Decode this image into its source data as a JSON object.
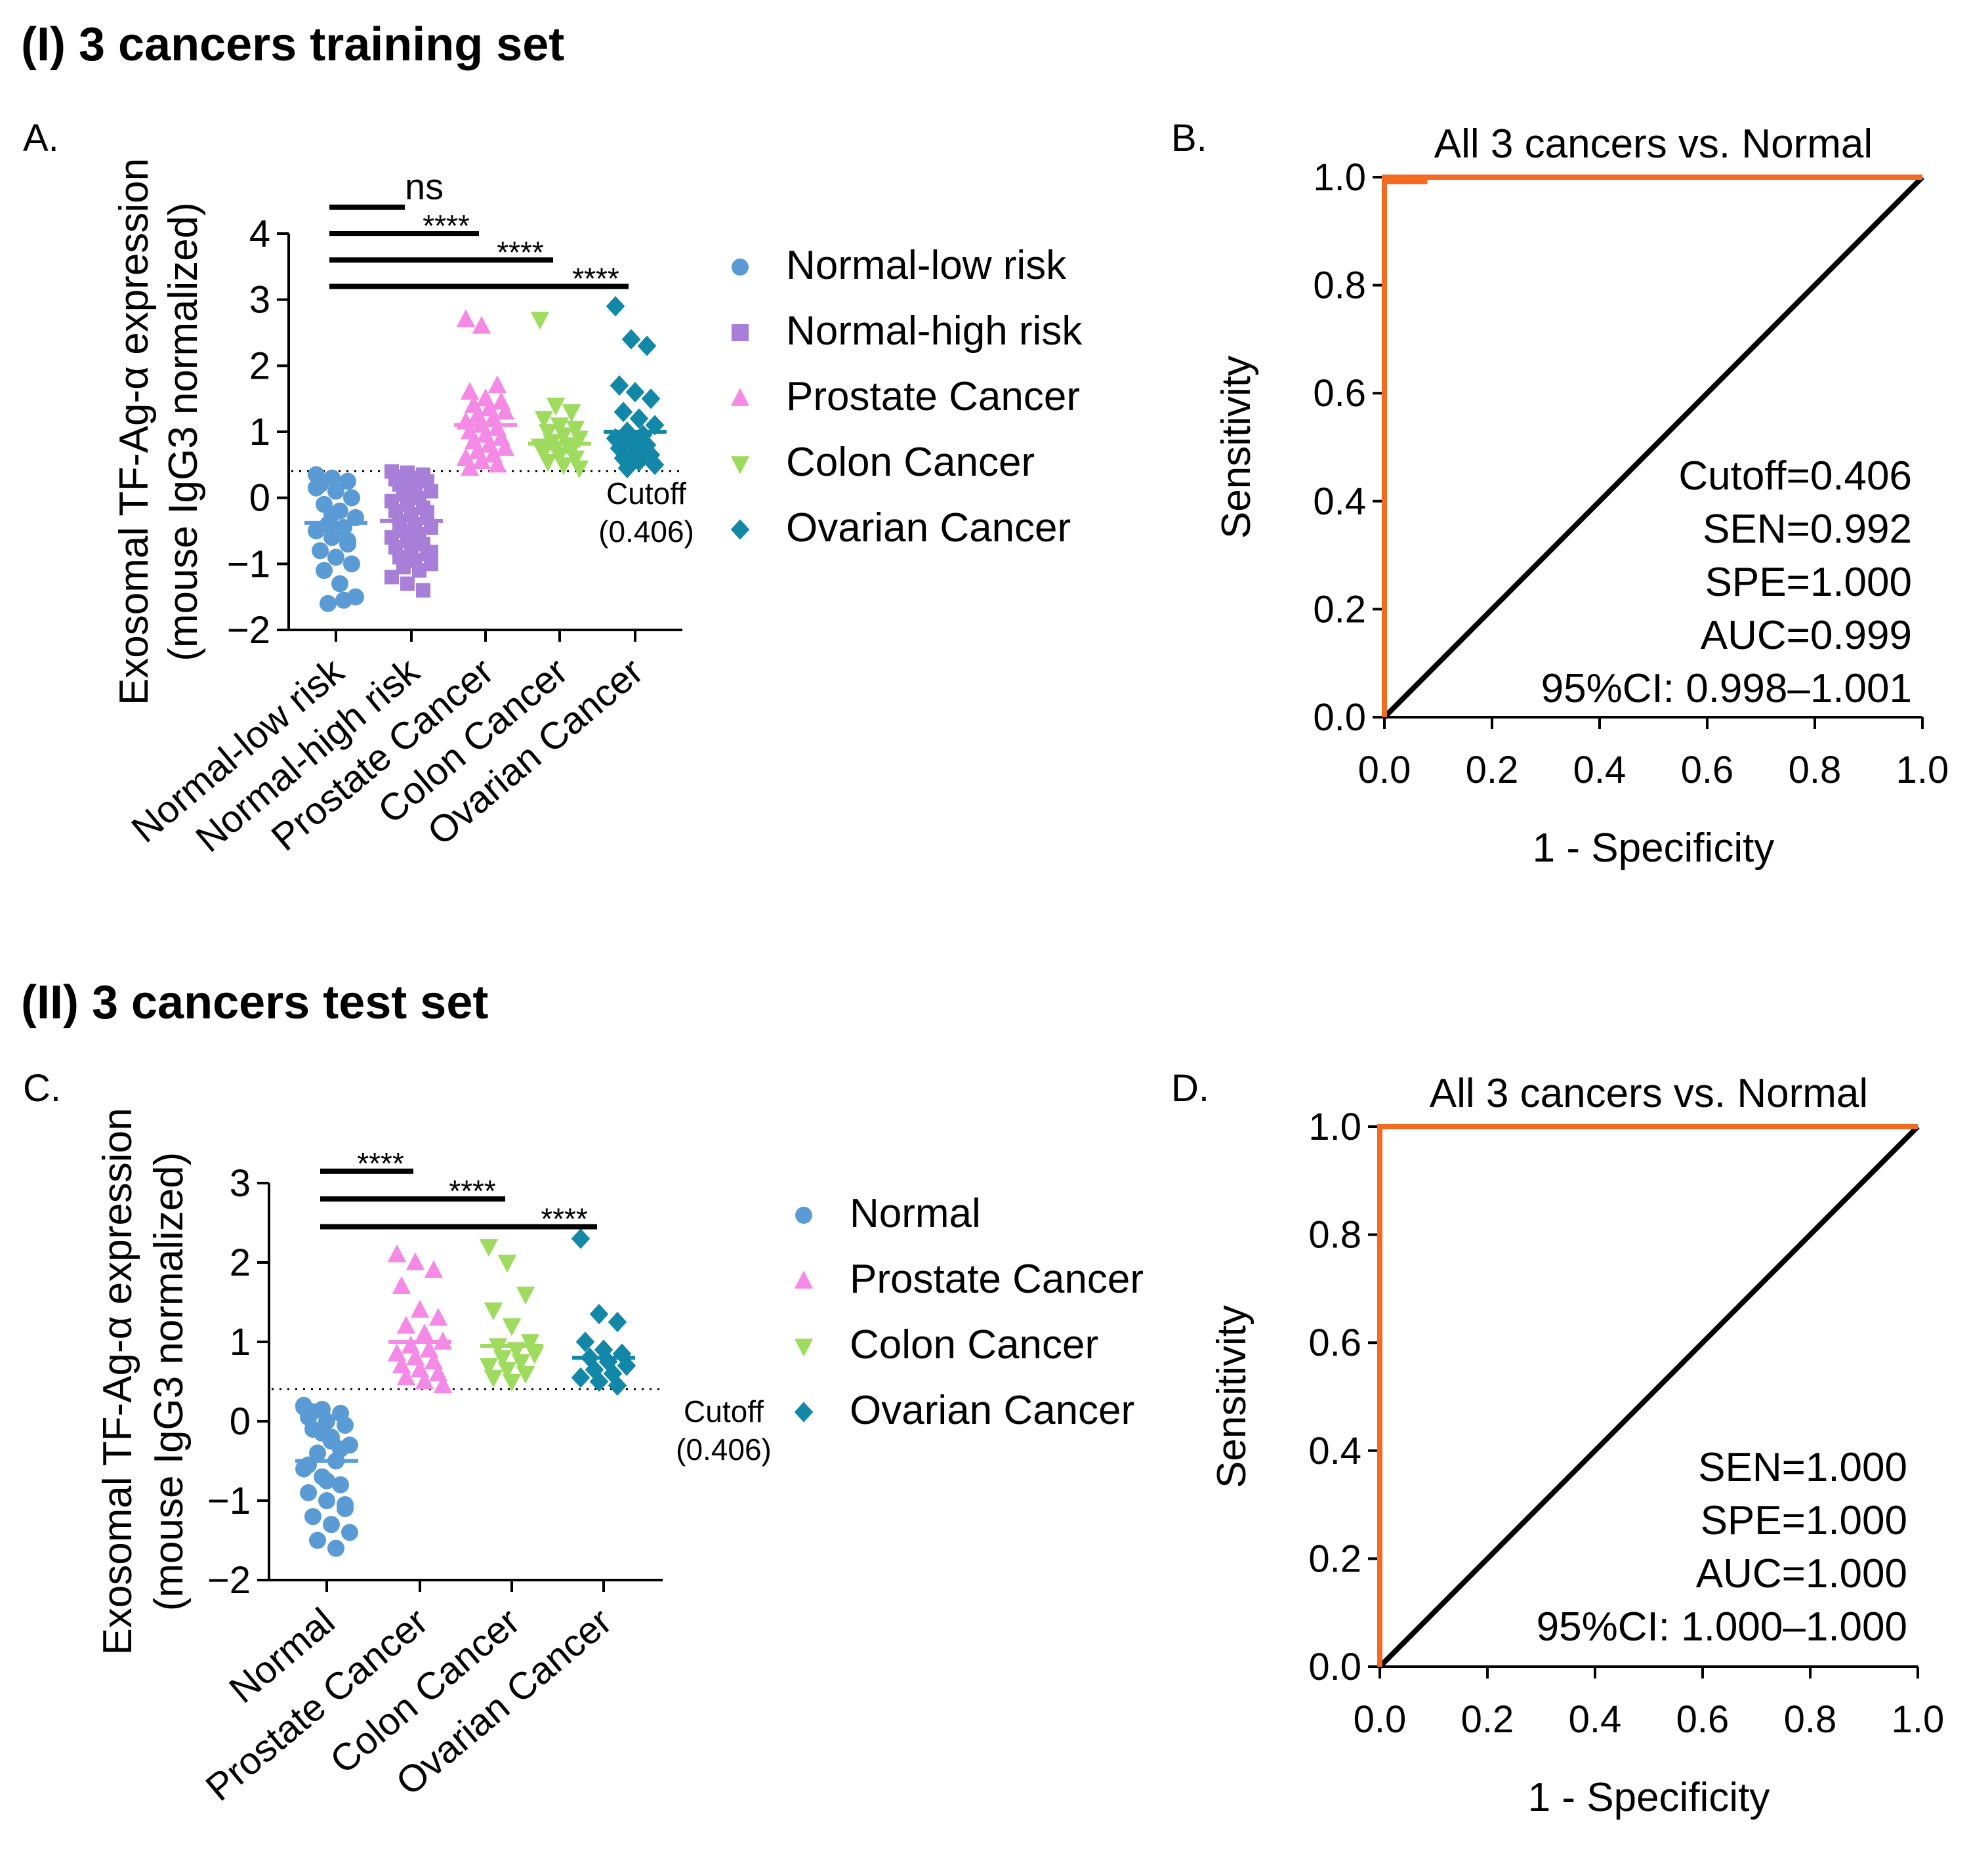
{
  "figure": {
    "section1_title": "(I) 3 cancers training set",
    "section2_title": "(II) 3 cancers test set"
  },
  "colors": {
    "Normal-low risk": "#5b9bd5",
    "Normal-high risk": "#a77ed8",
    "Prostate Cancer": "#f58ae6",
    "Colon Cancer": "#9edb5e",
    "Ovarian Cancer": "#1287a8",
    "Normal": "#5b9bd5",
    "roc": "#f26b21",
    "diag": "#000000"
  },
  "chart_data": [
    {
      "panel": "A.",
      "type": "scatter",
      "ylabel_line1": "Exosomal TF-Ag-α expression",
      "ylabel_line2": "(mouse IgG3 normalized)",
      "ylim": [
        -2,
        4
      ],
      "yticks": [
        -2,
        -1,
        0,
        1,
        2,
        3,
        4
      ],
      "ytick_labels": [
        "−2",
        "−1",
        "0",
        "1",
        "2",
        "3",
        "4"
      ],
      "categories": [
        "Normal-low risk",
        "Normal-high risk",
        "Prostate Cancer",
        "Colon Cancer",
        "Ovarian Cancer"
      ],
      "markers": [
        "circle",
        "square",
        "triangle-up",
        "triangle-down",
        "diamond"
      ],
      "medians": [
        -0.38,
        -0.35,
        1.1,
        0.82,
        1.0
      ],
      "cutoff": 0.406,
      "cutoff_label_line1": "Cutoff",
      "cutoff_label_line2": "(0.406)",
      "comparisons": [
        {
          "label": "ns",
          "y": 4.4,
          "to": 1
        },
        {
          "label": "****",
          "y": 4.0,
          "to": 2
        },
        {
          "label": "****",
          "y": 3.6,
          "to": 3
        },
        {
          "label": "****",
          "y": 3.2,
          "to": 4
        }
      ],
      "points": [
        [
          0.35,
          0.3,
          0.25,
          0.2,
          0.1,
          0.0,
          -0.1,
          -0.2,
          -0.3,
          -0.4,
          -0.45,
          -0.5,
          -0.6,
          -0.7,
          -0.8,
          -0.9,
          -1.0,
          -1.1,
          -1.3,
          -1.5,
          -1.6,
          -1.55,
          0.15,
          -0.25,
          -0.65
        ],
        [
          0.4,
          0.38,
          0.35,
          0.32,
          0.3,
          0.25,
          0.2,
          0.15,
          0.1,
          0.05,
          0.0,
          -0.05,
          -0.1,
          -0.15,
          -0.2,
          -0.25,
          -0.3,
          -0.35,
          -0.4,
          -0.45,
          -0.5,
          -0.55,
          -0.6,
          -0.65,
          -0.7,
          -0.75,
          -0.8,
          -0.85,
          -0.9,
          -0.95,
          -1.0,
          -1.05,
          -1.1,
          -1.2,
          -1.3,
          -1.4,
          0.28,
          0.12,
          -0.22,
          -0.42,
          -0.62,
          -0.82,
          -1.02
        ],
        [
          2.7,
          2.6,
          1.7,
          1.6,
          1.5,
          1.45,
          1.4,
          1.35,
          1.3,
          1.25,
          1.2,
          1.15,
          1.1,
          1.05,
          1.0,
          0.95,
          0.9,
          0.85,
          0.8,
          0.75,
          0.7,
          0.65,
          0.6,
          0.55,
          0.5,
          0.45
        ],
        [
          2.7,
          1.4,
          1.3,
          1.2,
          1.1,
          1.05,
          1.0,
          0.95,
          0.9,
          0.85,
          0.8,
          0.78,
          0.75,
          0.72,
          0.7,
          0.65,
          0.6,
          0.55,
          0.5,
          0.45
        ],
        [
          2.9,
          2.4,
          2.3,
          1.7,
          1.6,
          1.5,
          1.3,
          1.2,
          1.1,
          1.0,
          0.95,
          0.9,
          0.85,
          0.8,
          0.75,
          0.7,
          0.65,
          0.6,
          0.55,
          0.5,
          0.45
        ]
      ]
    },
    {
      "panel": "B.",
      "type": "line",
      "title": "All 3 cancers vs. Normal",
      "xlabel": "1 - Specificity",
      "ylabel": "Sensitivity",
      "xlim": [
        0,
        1
      ],
      "ylim": [
        0,
        1
      ],
      "ticks": [
        0.0,
        0.2,
        0.4,
        0.6,
        0.8,
        1.0
      ],
      "tick_labels": [
        "0.0",
        "0.2",
        "0.4",
        "0.6",
        "0.8",
        "1.0"
      ],
      "roc_x": [
        0,
        0,
        0,
        0.08,
        1
      ],
      "roc_y": [
        0,
        0.992,
        1.0,
        1.0,
        1.0
      ],
      "roc_step": [
        0,
        0.992,
        0.08
      ],
      "stats": [
        "Cutoff=0.406",
        "SEN=0.992",
        "SPE=1.000",
        "AUC=0.999",
        "95%CI: 0.998–1.001"
      ]
    },
    {
      "panel": "C.",
      "type": "scatter",
      "ylabel_line1": "Exosomal TF-Ag-α expression",
      "ylabel_line2": "(mouse IgG3 normalized)",
      "ylim": [
        -2,
        3
      ],
      "yticks": [
        -2,
        -1,
        0,
        1,
        2,
        3
      ],
      "ytick_labels": [
        "−2",
        "−1",
        "0",
        "1",
        "2",
        "3"
      ],
      "categories": [
        "Normal",
        "Prostate Cancer",
        "Colon Cancer",
        "Ovarian Cancer"
      ],
      "markers": [
        "circle",
        "triangle-up",
        "triangle-down",
        "diamond"
      ],
      "medians": [
        -0.5,
        1.0,
        0.95,
        0.8
      ],
      "cutoff": 0.406,
      "cutoff_label_line1": "Cutoff",
      "cutoff_label_line2": "(0.406)",
      "comparisons": [
        {
          "label": "****",
          "y": 3.15,
          "to": 1
        },
        {
          "label": "****",
          "y": 2.8,
          "to": 2
        },
        {
          "label": "****",
          "y": 2.45,
          "to": 3
        }
      ],
      "points": [
        [
          0.2,
          0.15,
          0.1,
          0.05,
          0.0,
          -0.05,
          -0.1,
          -0.2,
          -0.3,
          -0.4,
          -0.5,
          -0.6,
          -0.7,
          -0.8,
          -0.9,
          -1.0,
          -1.1,
          -1.2,
          -1.3,
          -1.4,
          -1.5,
          -1.6,
          0.18,
          -0.15,
          -0.35,
          -0.55,
          -0.75,
          -1.05,
          0.12,
          -0.25
        ],
        [
          2.1,
          2.0,
          1.9,
          1.7,
          1.4,
          1.3,
          1.2,
          1.1,
          1.0,
          0.95,
          0.9,
          0.85,
          0.8,
          0.75,
          0.7,
          0.65,
          0.6,
          0.55,
          0.5,
          0.45
        ],
        [
          2.2,
          2.0,
          1.6,
          1.4,
          1.2,
          1.0,
          0.95,
          0.9,
          0.85,
          0.8,
          0.75,
          0.7,
          0.65,
          0.6,
          0.55,
          0.5
        ],
        [
          2.3,
          1.35,
          1.25,
          1.0,
          0.9,
          0.85,
          0.8,
          0.75,
          0.7,
          0.65,
          0.6,
          0.55,
          0.5,
          0.45
        ]
      ]
    },
    {
      "panel": "D.",
      "type": "line",
      "title": "All 3 cancers vs. Normal",
      "xlabel": "1 - Specificity",
      "ylabel": "Sensitivity",
      "xlim": [
        0,
        1
      ],
      "ylim": [
        0,
        1
      ],
      "ticks": [
        0.0,
        0.2,
        0.4,
        0.6,
        0.8,
        1.0
      ],
      "tick_labels": [
        "0.0",
        "0.2",
        "0.4",
        "0.6",
        "0.8",
        "1.0"
      ],
      "roc_x": [
        0,
        0,
        1
      ],
      "roc_y": [
        0,
        1.0,
        1.0
      ],
      "stats": [
        "SEN=1.000",
        "SPE=1.000",
        "AUC=1.000",
        "95%CI: 1.000–1.000"
      ]
    }
  ]
}
